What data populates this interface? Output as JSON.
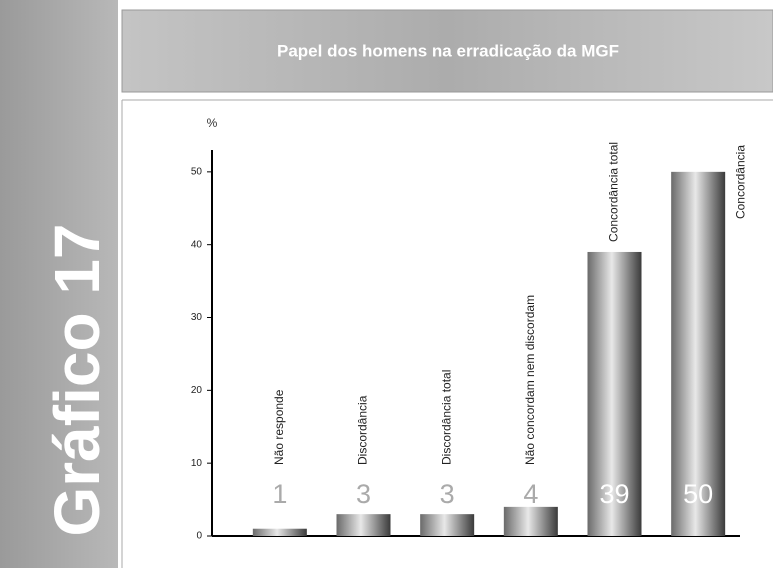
{
  "side_label": "Gráfico 17",
  "chart_data": {
    "type": "bar",
    "title": "Papel dos homens na erradicação da MGF",
    "y_label": "%",
    "categories": [
      "Não responde",
      "Discordância",
      "Discordância total",
      "Não concordam nem discordam",
      "Concordância total",
      "Concordância"
    ],
    "values": [
      1,
      3,
      3,
      4,
      39,
      50
    ],
    "ylim": [
      0,
      53
    ],
    "yticks": [
      0,
      10,
      20,
      30,
      40,
      50
    ]
  }
}
